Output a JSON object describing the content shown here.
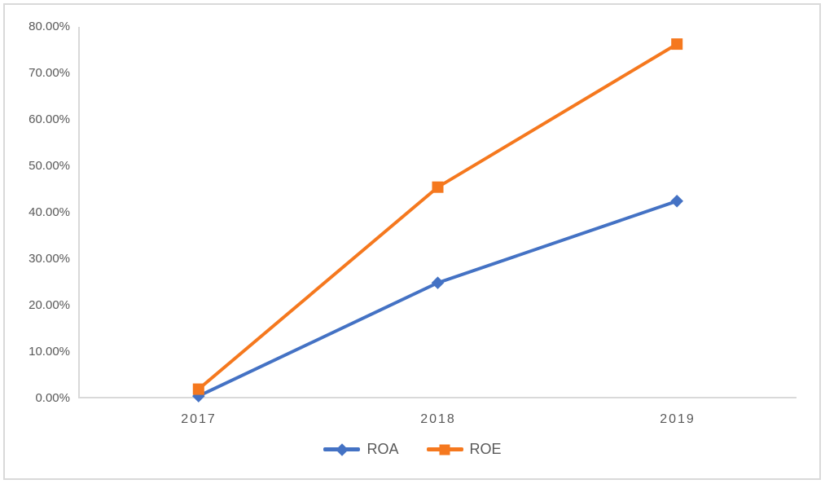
{
  "chart_data": {
    "type": "line",
    "title": "",
    "categories": [
      "2017",
      "2018",
      "2019"
    ],
    "series": [
      {
        "name": "ROA",
        "color": "#4472C4",
        "marker": "diamond",
        "values": [
          0.5,
          24.9,
          42.5
        ]
      },
      {
        "name": "ROE",
        "color": "#F5781E",
        "marker": "square",
        "values": [
          2.0,
          45.5,
          76.3
        ]
      }
    ],
    "ylim": [
      0,
      80
    ],
    "ytick_step": 10,
    "ytick_labels": [
      "0.00%",
      "10.00%",
      "20.00%",
      "30.00%",
      "40.00%",
      "50.00%",
      "60.00%",
      "70.00%",
      "80.00%"
    ],
    "xlabel": "",
    "ylabel": "",
    "grid": false,
    "legend_position": "bottom",
    "axis_color": "#D9D9D9",
    "frame_color": "#D9D9D9",
    "text_color": "#595959"
  }
}
